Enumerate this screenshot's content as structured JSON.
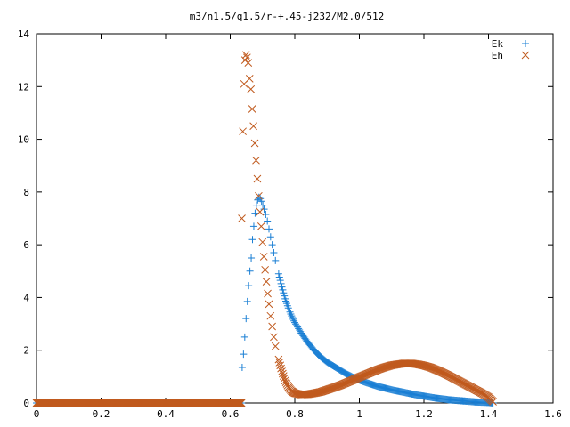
{
  "chart_data": {
    "type": "scatter",
    "title": "m3/n1.5/q1.5/r-+.45-j232/M2.0/512",
    "xlabel": "",
    "ylabel": "",
    "xlim": [
      0,
      1.6
    ],
    "ylim": [
      0,
      14
    ],
    "x_ticks": [
      "0",
      "0.2",
      "0.4",
      "0.6",
      "0.8",
      "1",
      "1.2",
      "1.4",
      "1.6"
    ],
    "y_ticks": [
      "0",
      "2",
      "4",
      "6",
      "8",
      "10",
      "12",
      "14"
    ],
    "grid": false,
    "legend_position": "top-right",
    "series": [
      {
        "name": "Ek",
        "marker": "plus",
        "color": "#1a7fd4",
        "points": [
          [
            0.637,
            1.35
          ],
          [
            0.641,
            1.85
          ],
          [
            0.645,
            2.5
          ],
          [
            0.649,
            3.2
          ],
          [
            0.653,
            3.85
          ],
          [
            0.657,
            4.45
          ],
          [
            0.661,
            5.0
          ],
          [
            0.665,
            5.5
          ],
          [
            0.669,
            6.2
          ],
          [
            0.673,
            6.7
          ],
          [
            0.677,
            7.2
          ],
          [
            0.681,
            7.5
          ],
          [
            0.685,
            7.7
          ],
          [
            0.689,
            7.8
          ],
          [
            0.693,
            7.75
          ],
          [
            0.697,
            7.65
          ],
          [
            0.701,
            7.5
          ],
          [
            0.705,
            7.35
          ],
          [
            0.71,
            7.15
          ],
          [
            0.715,
            6.9
          ],
          [
            0.72,
            6.6
          ],
          [
            0.725,
            6.3
          ],
          [
            0.73,
            6.0
          ],
          [
            0.735,
            5.7
          ],
          [
            0.74,
            5.4
          ],
          [
            0.75,
            4.9
          ],
          [
            0.76,
            4.4
          ],
          [
            0.77,
            3.95
          ],
          [
            0.78,
            3.6
          ],
          [
            0.79,
            3.3
          ],
          [
            0.8,
            3.05
          ],
          [
            0.82,
            2.65
          ],
          [
            0.84,
            2.3
          ],
          [
            0.86,
            2.0
          ],
          [
            0.88,
            1.75
          ],
          [
            0.9,
            1.55
          ],
          [
            0.92,
            1.4
          ],
          [
            0.94,
            1.25
          ],
          [
            0.96,
            1.1
          ],
          [
            0.98,
            0.98
          ],
          [
            1.0,
            0.87
          ],
          [
            1.02,
            0.78
          ],
          [
            1.04,
            0.7
          ],
          [
            1.06,
            0.62
          ],
          [
            1.08,
            0.56
          ],
          [
            1.1,
            0.5
          ],
          [
            1.12,
            0.45
          ],
          [
            1.14,
            0.4
          ],
          [
            1.16,
            0.35
          ],
          [
            1.18,
            0.3
          ],
          [
            1.2,
            0.26
          ],
          [
            1.22,
            0.22
          ],
          [
            1.24,
            0.18
          ],
          [
            1.26,
            0.15
          ],
          [
            1.28,
            0.12
          ],
          [
            1.3,
            0.1
          ],
          [
            1.32,
            0.08
          ],
          [
            1.34,
            0.06
          ],
          [
            1.36,
            0.04
          ],
          [
            1.38,
            0.03
          ],
          [
            1.4,
            0.02
          ],
          [
            1.414,
            0.0
          ]
        ]
      },
      {
        "name": "Eh",
        "marker": "cross",
        "color": "#c05a1e",
        "points": [
          [
            0.636,
            7.0
          ],
          [
            0.639,
            10.3
          ],
          [
            0.643,
            12.1
          ],
          [
            0.646,
            13.0
          ],
          [
            0.649,
            13.2
          ],
          [
            0.652,
            13.1
          ],
          [
            0.656,
            12.9
          ],
          [
            0.66,
            12.3
          ],
          [
            0.664,
            11.9
          ],
          [
            0.668,
            11.15
          ],
          [
            0.672,
            10.5
          ],
          [
            0.676,
            9.85
          ],
          [
            0.68,
            9.2
          ],
          [
            0.684,
            8.5
          ],
          [
            0.688,
            7.85
          ],
          [
            0.692,
            7.25
          ],
          [
            0.696,
            6.7
          ],
          [
            0.7,
            6.1
          ],
          [
            0.704,
            5.55
          ],
          [
            0.708,
            5.05
          ],
          [
            0.712,
            4.6
          ],
          [
            0.716,
            4.15
          ],
          [
            0.72,
            3.75
          ],
          [
            0.725,
            3.3
          ],
          [
            0.73,
            2.9
          ],
          [
            0.735,
            2.5
          ],
          [
            0.74,
            2.15
          ],
          [
            0.75,
            1.65
          ],
          [
            0.76,
            1.2
          ],
          [
            0.77,
            0.85
          ],
          [
            0.78,
            0.6
          ],
          [
            0.79,
            0.45
          ],
          [
            0.8,
            0.37
          ],
          [
            0.82,
            0.32
          ],
          [
            0.84,
            0.33
          ],
          [
            0.86,
            0.37
          ],
          [
            0.88,
            0.42
          ],
          [
            0.9,
            0.5
          ],
          [
            0.92,
            0.58
          ],
          [
            0.94,
            0.67
          ],
          [
            0.96,
            0.77
          ],
          [
            0.98,
            0.87
          ],
          [
            1.0,
            0.98
          ],
          [
            1.02,
            1.08
          ],
          [
            1.04,
            1.18
          ],
          [
            1.06,
            1.28
          ],
          [
            1.08,
            1.36
          ],
          [
            1.1,
            1.43
          ],
          [
            1.12,
            1.47
          ],
          [
            1.14,
            1.5
          ],
          [
            1.16,
            1.5
          ],
          [
            1.18,
            1.47
          ],
          [
            1.2,
            1.42
          ],
          [
            1.22,
            1.35
          ],
          [
            1.24,
            1.25
          ],
          [
            1.26,
            1.14
          ],
          [
            1.28,
            1.02
          ],
          [
            1.3,
            0.89
          ],
          [
            1.32,
            0.76
          ],
          [
            1.34,
            0.63
          ],
          [
            1.36,
            0.5
          ],
          [
            1.38,
            0.37
          ],
          [
            1.4,
            0.22
          ],
          [
            1.414,
            0.05
          ]
        ]
      }
    ]
  }
}
